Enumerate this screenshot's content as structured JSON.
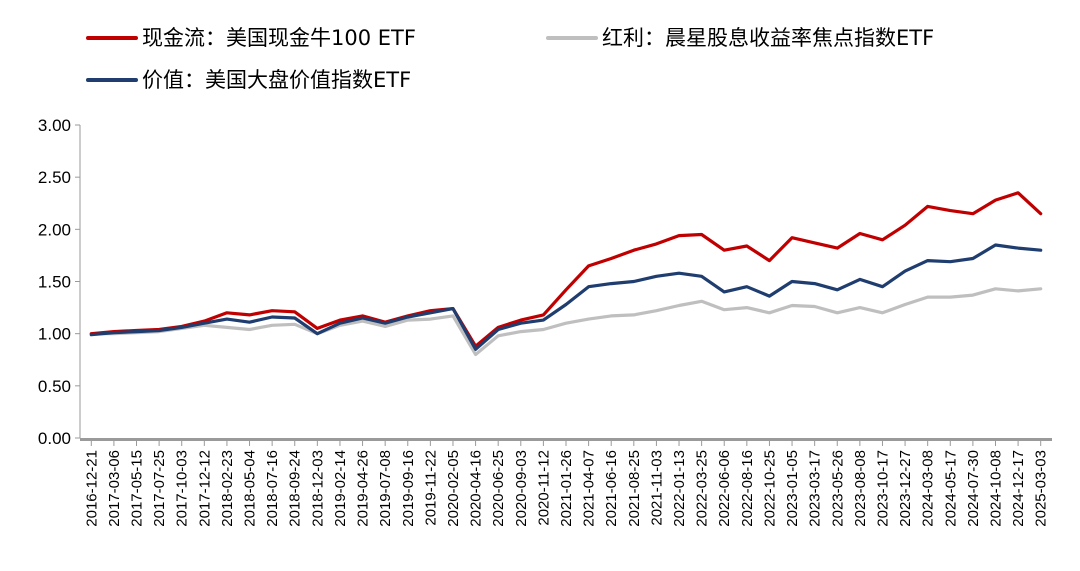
{
  "chart_data": {
    "type": "line",
    "title": "",
    "xlabel": "",
    "ylabel": "",
    "ylim": [
      0,
      3
    ],
    "yticks": [
      "0.00",
      "0.50",
      "1.00",
      "1.50",
      "2.00",
      "2.50",
      "3.00"
    ],
    "grid": false,
    "legend_position": "top-left",
    "x": [
      "2016-12-21",
      "2017-03-06",
      "2017-05-15",
      "2017-07-25",
      "2017-10-03",
      "2017-12-12",
      "2018-02-23",
      "2018-05-04",
      "2018-07-16",
      "2018-09-24",
      "2018-12-03",
      "2019-02-14",
      "2019-04-26",
      "2019-07-08",
      "2019-09-16",
      "2019-11-22",
      "2020-02-05",
      "2020-04-16",
      "2020-06-25",
      "2020-09-03",
      "2020-11-12",
      "2021-01-26",
      "2021-04-07",
      "2021-06-16",
      "2021-08-25",
      "2021-11-03",
      "2022-01-13",
      "2022-03-25",
      "2022-06-06",
      "2022-08-16",
      "2022-10-25",
      "2023-01-05",
      "2023-03-17",
      "2023-05-26",
      "2023-08-08",
      "2023-10-17",
      "2023-12-27",
      "2024-03-08",
      "2024-05-17",
      "2024-07-30",
      "2024-10-08",
      "2024-12-17",
      "2025-03-03"
    ],
    "series": [
      {
        "name": "现金流：美国现金牛100 ETF",
        "color": "#C00000",
        "values": [
          1.0,
          1.02,
          1.03,
          1.04,
          1.07,
          1.12,
          1.2,
          1.18,
          1.22,
          1.21,
          1.05,
          1.13,
          1.17,
          1.11,
          1.17,
          1.22,
          1.24,
          0.88,
          1.06,
          1.13,
          1.18,
          1.42,
          1.65,
          1.72,
          1.8,
          1.86,
          1.94,
          1.95,
          1.8,
          1.84,
          1.7,
          1.92,
          1.87,
          1.82,
          1.96,
          1.9,
          2.04,
          2.22,
          2.18,
          2.15,
          2.28,
          2.35,
          2.15
        ]
      },
      {
        "name": "红利：晨星股息收益率焦点指数ETF",
        "color": "#BFBFBF",
        "values": [
          1.0,
          1.0,
          1.01,
          1.02,
          1.05,
          1.08,
          1.06,
          1.04,
          1.08,
          1.09,
          1.0,
          1.08,
          1.12,
          1.07,
          1.13,
          1.14,
          1.17,
          0.8,
          0.98,
          1.02,
          1.04,
          1.1,
          1.14,
          1.17,
          1.18,
          1.22,
          1.27,
          1.31,
          1.23,
          1.25,
          1.2,
          1.27,
          1.26,
          1.2,
          1.25,
          1.2,
          1.28,
          1.35,
          1.35,
          1.37,
          1.43,
          1.41,
          1.43
        ]
      },
      {
        "name": "价值：美国大盘价值指数ETF",
        "color": "#1F3D6E",
        "values": [
          0.99,
          1.01,
          1.02,
          1.03,
          1.06,
          1.1,
          1.14,
          1.11,
          1.16,
          1.15,
          1.0,
          1.1,
          1.15,
          1.1,
          1.16,
          1.2,
          1.24,
          0.85,
          1.04,
          1.1,
          1.13,
          1.28,
          1.45,
          1.48,
          1.5,
          1.55,
          1.58,
          1.55,
          1.4,
          1.45,
          1.36,
          1.5,
          1.48,
          1.42,
          1.52,
          1.45,
          1.6,
          1.7,
          1.69,
          1.72,
          1.85,
          1.82,
          1.8
        ]
      }
    ]
  }
}
